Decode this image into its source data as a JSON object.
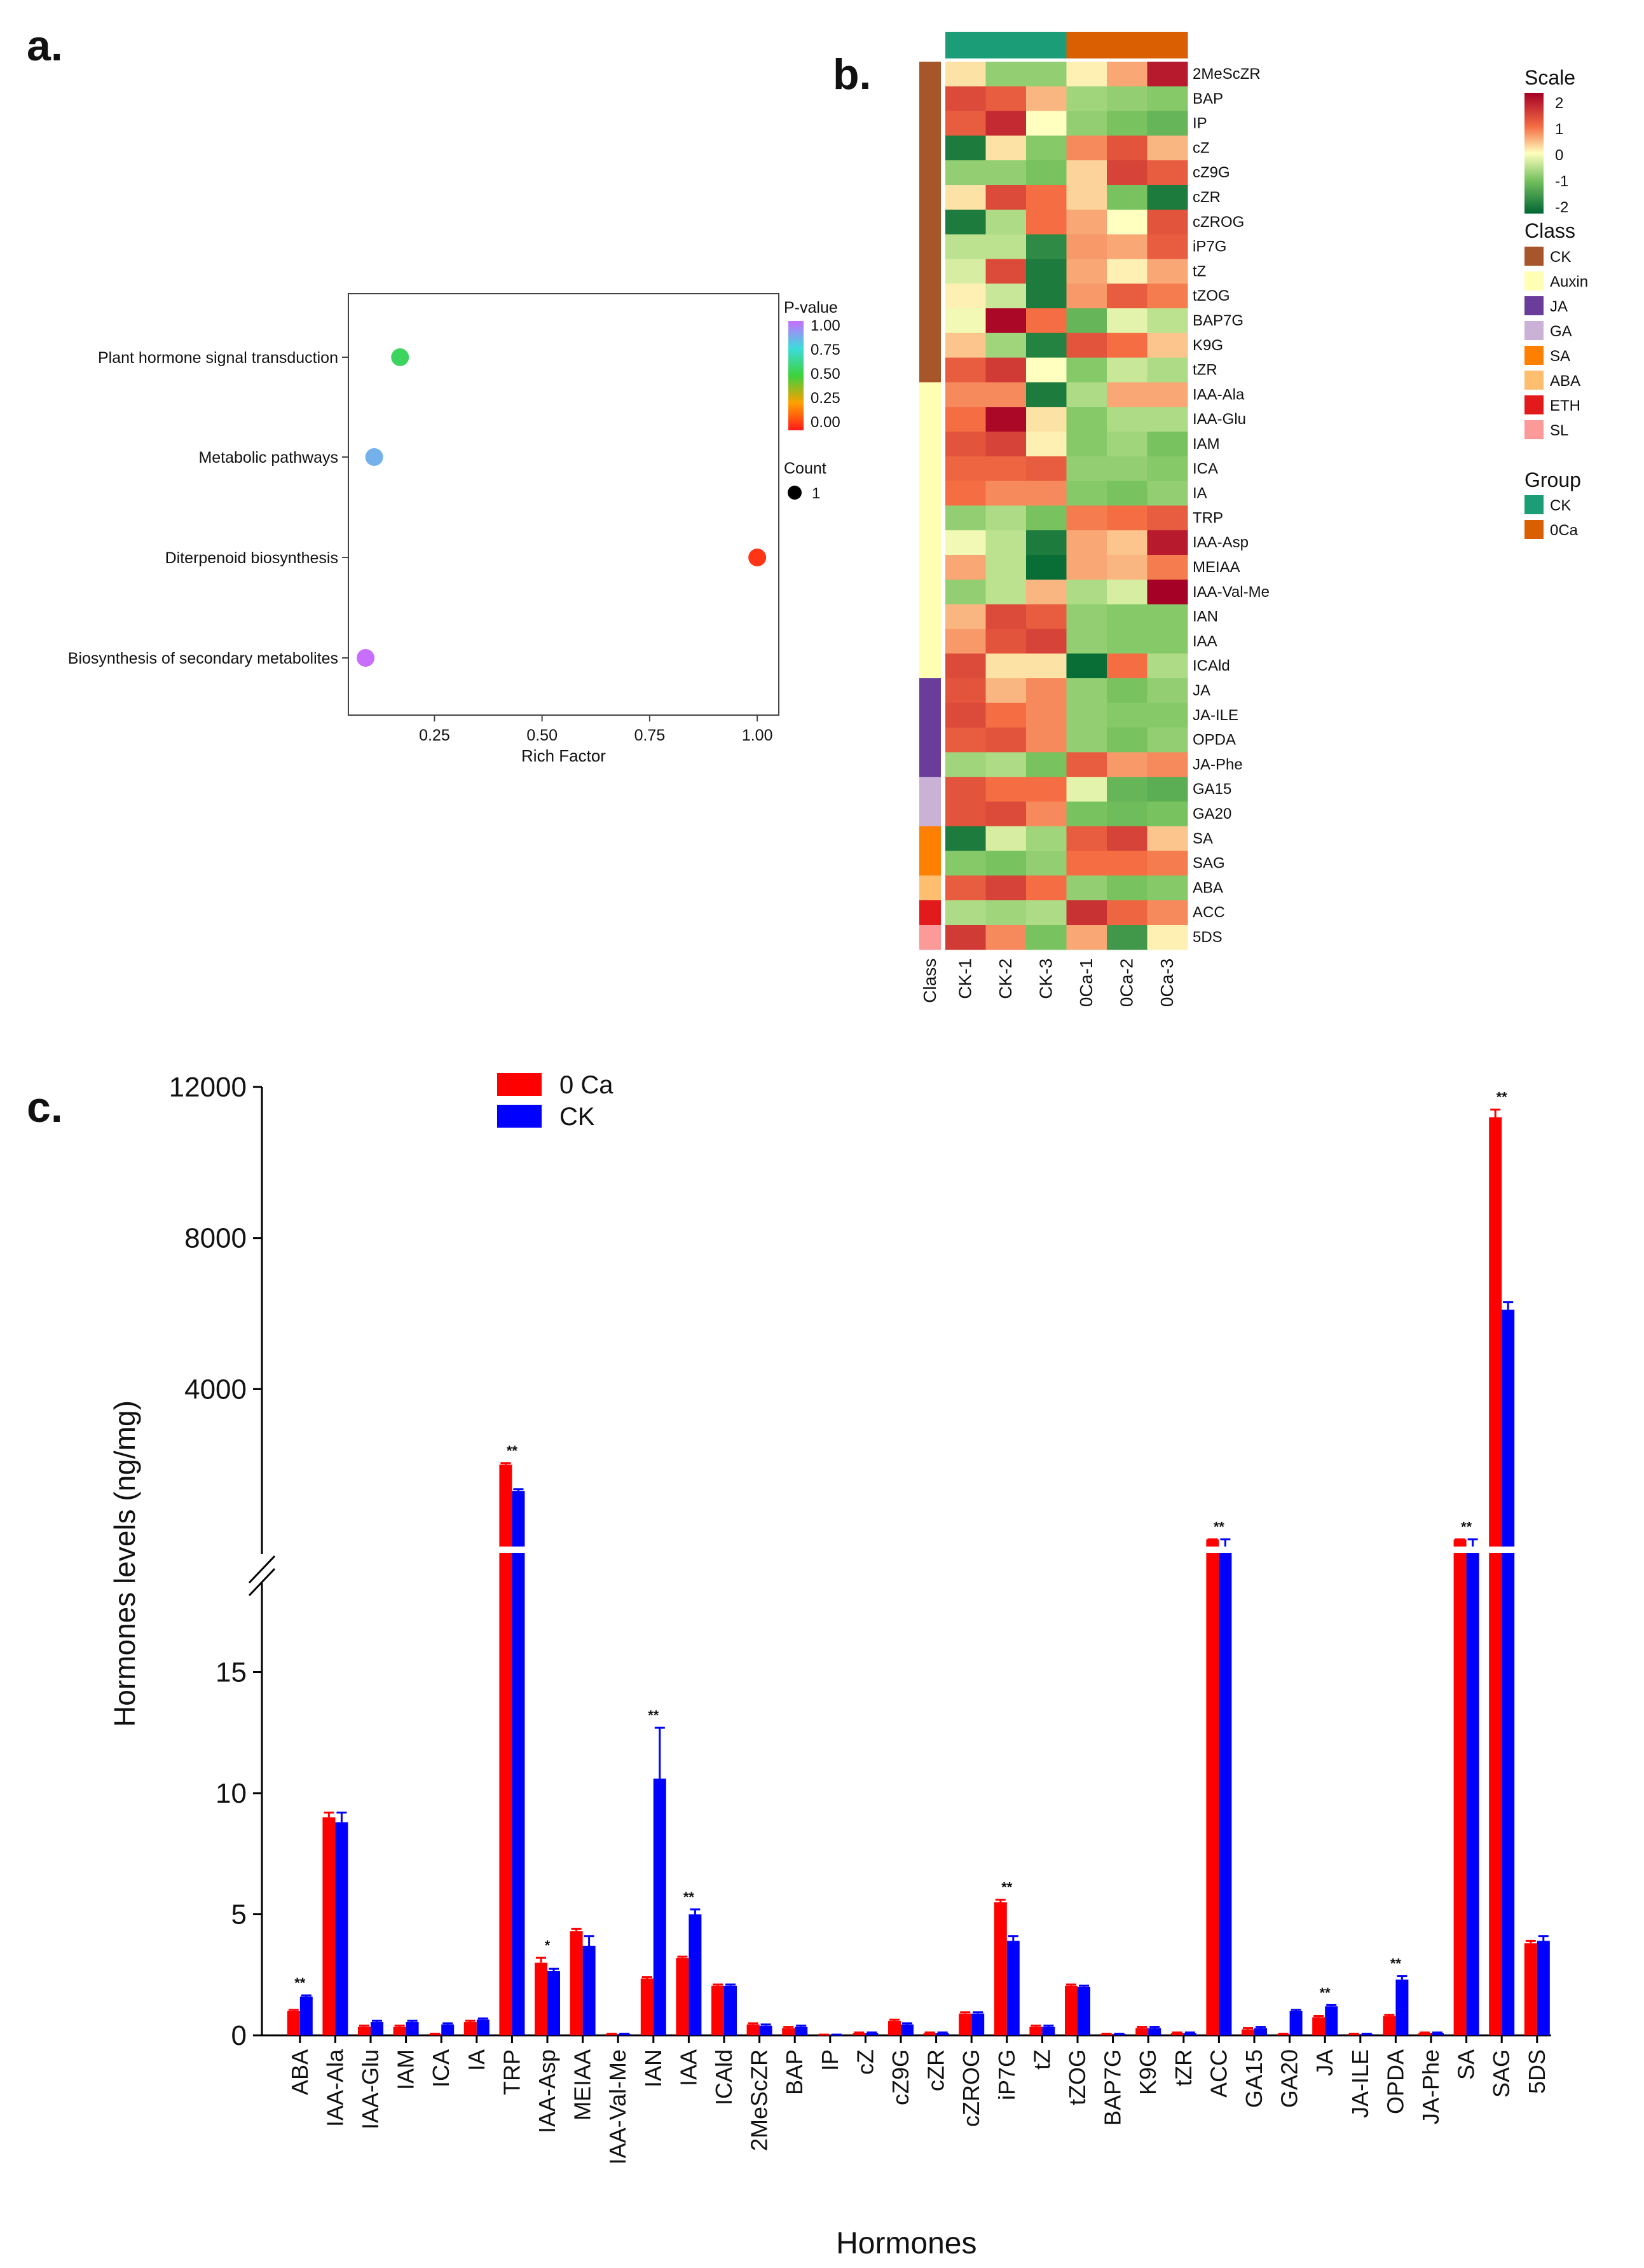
{
  "panel_labels": {
    "a": "a.",
    "b": "b.",
    "c": "c."
  },
  "chart_data": [
    {
      "panel": "a",
      "type": "scatter",
      "title": "",
      "xlabel": "Rich Factor",
      "ylabel": "",
      "xlim": [
        0.05,
        1.05
      ],
      "xticks": [
        "0.25",
        "0.50",
        "0.75",
        "1.00"
      ],
      "categories": [
        "Plant hormone signal transduction",
        "Metabolic pathways",
        "Diterpenoid biosynthesis",
        "Biosynthesis of secondary metabolites"
      ],
      "rich_factor": [
        0.17,
        0.11,
        1.0,
        0.09
      ],
      "p_value": [
        0.55,
        0.85,
        0.05,
        1.0
      ],
      "count": [
        1,
        1,
        1,
        1
      ],
      "color_legend": {
        "title": "P-value",
        "ticks": [
          "1.00",
          "0.75",
          "0.50",
          "0.25",
          "0.00"
        ]
      },
      "size_legend": {
        "title": "Count",
        "value": "1"
      }
    },
    {
      "panel": "b",
      "type": "heatmap",
      "columns": [
        "CK-1",
        "CK-2",
        "CK-3",
        "0Ca-1",
        "0Ca-2",
        "0Ca-3"
      ],
      "column_groups": [
        "CK",
        "CK",
        "CK",
        "0Ca",
        "0Ca",
        "0Ca"
      ],
      "rows": [
        "2MeScZR",
        "BAP",
        "IP",
        "cZ",
        "cZ9G",
        "cZR",
        "cZROG",
        "iP7G",
        "tZ",
        "tZOG",
        "BAP7G",
        "K9G",
        "tZR",
        "IAA-Ala",
        "IAA-Glu",
        "IAM",
        "ICA",
        "IA",
        "TRP",
        "IAA-Asp",
        "MEIAA",
        "IAA-Val-Me",
        "IAN",
        "IAA",
        "ICAld",
        "JA",
        "JA-ILE",
        "OPDA",
        "JA-Phe",
        "GA15",
        "GA20",
        "SA",
        "SAG",
        "ABA",
        "ACC",
        "5DS"
      ],
      "row_classes": [
        "CK",
        "CK",
        "CK",
        "CK",
        "CK",
        "CK",
        "CK",
        "CK",
        "CK",
        "CK",
        "CK",
        "CK",
        "CK",
        "Auxin",
        "Auxin",
        "Auxin",
        "Auxin",
        "Auxin",
        "Auxin",
        "Auxin",
        "Auxin",
        "Auxin",
        "Auxin",
        "Auxin",
        "Auxin",
        "JA",
        "JA",
        "JA",
        "JA",
        "GA",
        "GA",
        "SA",
        "SA",
        "ABA",
        "ETH",
        "SL"
      ],
      "values": [
        [
          0.2,
          -0.8,
          -0.8,
          0.1,
          0.6,
          2.0
        ],
        [
          1.4,
          1.2,
          0.5,
          -0.7,
          -0.8,
          -0.9
        ],
        [
          1.2,
          1.8,
          0.0,
          -0.8,
          -1.0,
          -1.2
        ],
        [
          -2.0,
          0.2,
          -0.9,
          0.8,
          1.3,
          0.5
        ],
        [
          -0.8,
          -0.8,
          -1.0,
          0.3,
          1.5,
          1.2
        ],
        [
          0.2,
          1.4,
          1.0,
          0.3,
          -1.0,
          -2.0
        ],
        [
          -2.0,
          -0.6,
          1.0,
          0.6,
          0.0,
          1.3
        ],
        [
          -0.5,
          -0.5,
          -1.8,
          0.7,
          0.6,
          1.2
        ],
        [
          -0.3,
          1.4,
          -2.0,
          0.6,
          0.1,
          0.6
        ],
        [
          0.1,
          -0.4,
          -2.0,
          0.7,
          1.2,
          0.9
        ],
        [
          -0.1,
          2.2,
          1.0,
          -1.2,
          -0.2,
          -0.5
        ],
        [
          0.4,
          -0.7,
          -1.9,
          1.3,
          1.0,
          0.4
        ],
        [
          1.2,
          1.6,
          0.0,
          -0.9,
          -0.4,
          -0.6
        ],
        [
          0.8,
          0.8,
          -2.0,
          -0.6,
          0.6,
          0.6
        ],
        [
          1.0,
          2.2,
          0.2,
          -0.9,
          -0.6,
          -0.6
        ],
        [
          1.3,
          1.5,
          0.1,
          -0.9,
          -0.7,
          -1.0
        ],
        [
          1.1,
          1.1,
          1.2,
          -0.8,
          -0.8,
          -0.9
        ],
        [
          1.0,
          0.8,
          0.8,
          -0.9,
          -1.0,
          -0.8
        ],
        [
          -0.8,
          -0.6,
          -1.0,
          0.9,
          1.0,
          1.2
        ],
        [
          -0.1,
          -0.5,
          -2.0,
          0.6,
          0.4,
          2.0
        ],
        [
          0.6,
          -0.5,
          -2.2,
          0.6,
          0.5,
          0.9
        ],
        [
          -0.8,
          -0.5,
          0.5,
          -0.6,
          -0.3,
          2.4
        ],
        [
          0.5,
          1.4,
          1.2,
          -0.8,
          -0.9,
          -0.9
        ],
        [
          0.7,
          1.3,
          1.5,
          -0.8,
          -0.9,
          -0.9
        ],
        [
          1.4,
          0.2,
          0.2,
          -2.2,
          1.0,
          -0.6
        ],
        [
          1.3,
          0.5,
          0.8,
          -0.8,
          -1.0,
          -0.8
        ],
        [
          1.4,
          1.0,
          0.8,
          -0.8,
          -0.9,
          -0.9
        ],
        [
          1.2,
          1.3,
          0.8,
          -0.8,
          -1.0,
          -0.8
        ],
        [
          -0.7,
          -0.6,
          -1.0,
          1.2,
          0.7,
          0.8
        ],
        [
          1.3,
          1.0,
          1.0,
          -0.2,
          -1.2,
          -1.3
        ],
        [
          1.3,
          1.4,
          0.8,
          -1.0,
          -1.1,
          -1.0
        ],
        [
          -2.0,
          -0.3,
          -0.7,
          1.2,
          1.5,
          0.4
        ],
        [
          -0.9,
          -1.0,
          -0.8,
          1.0,
          1.0,
          0.9
        ],
        [
          1.2,
          1.5,
          1.0,
          -0.8,
          -1.0,
          -0.9
        ],
        [
          -0.6,
          -0.7,
          -0.6,
          1.7,
          1.1,
          0.8
        ],
        [
          1.6,
          0.8,
          -1.0,
          0.6,
          -1.6,
          0.1
        ]
      ],
      "scale_legend": {
        "title": "Scale",
        "ticks": [
          "2",
          "1",
          "0",
          "-1",
          "-2"
        ]
      },
      "class_legend": {
        "title": "Class",
        "items": [
          "CK",
          "Auxin",
          "JA",
          "GA",
          "SA",
          "ABA",
          "ETH",
          "SL"
        ],
        "colors": [
          "#A65628",
          "#FFFFB3",
          "#6A3D9A",
          "#CAB2D6",
          "#FF7F00",
          "#FDBF6F",
          "#E31A1C",
          "#FB9A99"
        ]
      },
      "group_legend": {
        "title": "Group",
        "items": [
          "CK",
          "0Ca"
        ],
        "colors": [
          "#1B9E77",
          "#D95F02"
        ]
      },
      "class_axis_label": "Class"
    },
    {
      "panel": "c",
      "type": "bar",
      "title": "",
      "xlabel": "Hormones",
      "ylabel": "Hormones levels (ng/mg)",
      "categories": [
        "ABA",
        "IAA-Ala",
        "IAA-Glu",
        "IAM",
        "ICA",
        "IA",
        "TRP",
        "IAA-Asp",
        "MEIAA",
        "IAA-Val-Me",
        "IAN",
        "IAA",
        "ICAld",
        "2MeScZR",
        "BAP",
        "IP",
        "cZ",
        "cZ9G",
        "cZR",
        "cZROG",
        "iP7G",
        "tZ",
        "tZOG",
        "BAP7G",
        "K9G",
        "tZR",
        "ACC",
        "GA15",
        "GA20",
        "JA",
        "JA-ILE",
        "OPDA",
        "JA-Phe",
        "SA",
        "SAG",
        "5DS"
      ],
      "series": [
        {
          "name": "0 Ca",
          "color": "#FF0000",
          "values": [
            1.0,
            9.0,
            0.35,
            0.35,
            0.05,
            0.55,
            2000,
            3.0,
            4.3,
            0.05,
            2.35,
            3.2,
            2.05,
            0.45,
            0.3,
            0.02,
            0.1,
            0.6,
            0.1,
            0.9,
            5.5,
            0.35,
            2.05,
            0.05,
            0.3,
            0.1,
            21,
            0.25,
            0.05,
            0.75,
            0.05,
            0.8,
            0.1,
            21,
            11200,
            3.8
          ],
          "errors": [
            0.05,
            0.2,
            0.05,
            0.05,
            0.02,
            0.05,
            40,
            0.2,
            0.1,
            0.02,
            0.05,
            0.05,
            0.05,
            0.05,
            0.05,
            0.01,
            0.02,
            0.05,
            0.02,
            0.05,
            0.1,
            0.05,
            0.05,
            0.02,
            0.05,
            0.02,
            0.5,
            0.05,
            0.02,
            0.05,
            0.02,
            0.05,
            0.02,
            0.5,
            200,
            0.1
          ]
        },
        {
          "name": "CK",
          "color": "#0000FF",
          "values": [
            1.6,
            8.8,
            0.55,
            0.55,
            0.45,
            0.65,
            1300,
            2.65,
            3.7,
            0.05,
            10.6,
            5.0,
            2.05,
            0.4,
            0.35,
            0.02,
            0.1,
            0.45,
            0.1,
            0.9,
            3.9,
            0.35,
            2.0,
            0.05,
            0.3,
            0.1,
            20,
            0.3,
            1.0,
            1.2,
            0.05,
            2.3,
            0.1,
            20,
            6100,
            3.9
          ],
          "errors": [
            0.05,
            0.4,
            0.05,
            0.05,
            0.05,
            0.05,
            50,
            0.1,
            0.4,
            0.02,
            2.1,
            0.2,
            0.05,
            0.05,
            0.05,
            0.01,
            0.02,
            0.05,
            0.02,
            0.05,
            0.2,
            0.05,
            0.05,
            0.02,
            0.05,
            0.02,
            0.5,
            0.05,
            0.05,
            0.05,
            0.02,
            0.15,
            0.02,
            0.5,
            200,
            0.2
          ]
        }
      ],
      "significance": [
        {
          "category": "ABA",
          "label": "**"
        },
        {
          "category": "TRP",
          "label": "**"
        },
        {
          "category": "IAA-Asp",
          "label": "*"
        },
        {
          "category": "IAN",
          "label": "**"
        },
        {
          "category": "IAA",
          "label": "**"
        },
        {
          "category": "iP7G",
          "label": "**"
        },
        {
          "category": "ACC",
          "label": "**"
        },
        {
          "category": "JA",
          "label": "**"
        },
        {
          "category": "OPDA",
          "label": "**"
        },
        {
          "category": "SA",
          "label": "**"
        },
        {
          "category": "SAG",
          "label": "**"
        }
      ],
      "ylim_lower": [
        0,
        20
      ],
      "ylim_upper": [
        0,
        12000
      ],
      "yticks_lower": [
        "0",
        "5",
        "10",
        "15"
      ],
      "yticks_upper": [
        "4000",
        "8000",
        "12000"
      ],
      "legend_position": "top-left"
    }
  ]
}
